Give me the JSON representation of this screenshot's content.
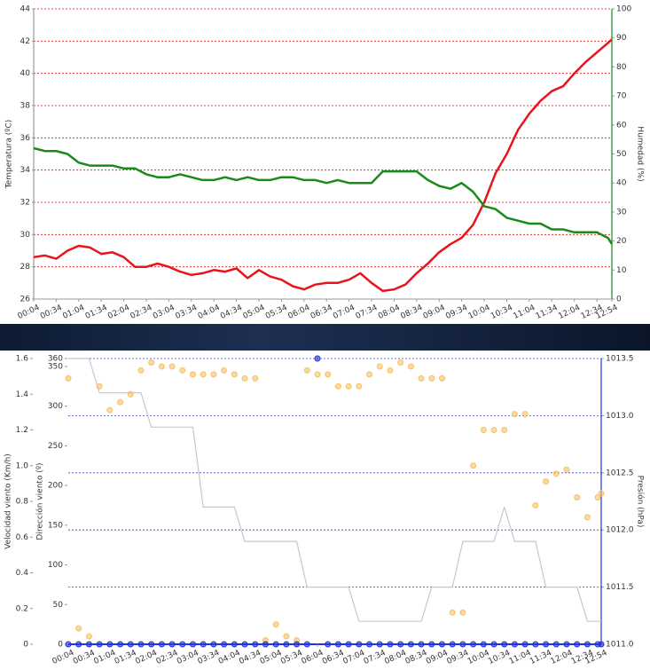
{
  "chart_data": [
    {
      "type": "line",
      "ylabel": "Temperatura (ºC)",
      "y2label": "Humedad (%)",
      "x": [
        4,
        19,
        34,
        49,
        64,
        79,
        94,
        109,
        124,
        139,
        154,
        169,
        184,
        199,
        214,
        229,
        244,
        259,
        274,
        289,
        304,
        319,
        334,
        349,
        364,
        379,
        394,
        409,
        424,
        439,
        454,
        469,
        484,
        499,
        514,
        529,
        544,
        559,
        574,
        589,
        604,
        619,
        634,
        649,
        664,
        679,
        694,
        709,
        724,
        739,
        754,
        769,
        774
      ],
      "xlim": [
        4,
        774
      ],
      "xticks": [
        {
          "value": 4,
          "label": "00:04"
        },
        {
          "value": 34,
          "label": "00:34"
        },
        {
          "value": 64,
          "label": "01:04"
        },
        {
          "value": 94,
          "label": "01:34"
        },
        {
          "value": 124,
          "label": "02:04"
        },
        {
          "value": 154,
          "label": "02:34"
        },
        {
          "value": 184,
          "label": "03:04"
        },
        {
          "value": 214,
          "label": "03:34"
        },
        {
          "value": 244,
          "label": "04:04"
        },
        {
          "value": 274,
          "label": "04:34"
        },
        {
          "value": 304,
          "label": "05:04"
        },
        {
          "value": 334,
          "label": "05:34"
        },
        {
          "value": 364,
          "label": "06:04"
        },
        {
          "value": 394,
          "label": "06:34"
        },
        {
          "value": 424,
          "label": "07:04"
        },
        {
          "value": 454,
          "label": "07:34"
        },
        {
          "value": 484,
          "label": "08:04"
        },
        {
          "value": 514,
          "label": "08:34"
        },
        {
          "value": 544,
          "label": "09:04"
        },
        {
          "value": 574,
          "label": "09:34"
        },
        {
          "value": 604,
          "label": "10:04"
        },
        {
          "value": 634,
          "label": "10:34"
        },
        {
          "value": 664,
          "label": "11:04"
        },
        {
          "value": 694,
          "label": "11:34"
        },
        {
          "value": 724,
          "label": "12:04"
        },
        {
          "value": 754,
          "label": "12:34"
        },
        {
          "value": 774,
          "label": "12:54"
        }
      ],
      "ylim": [
        26,
        44
      ],
      "yticks": [
        26,
        28,
        30,
        32,
        34,
        36,
        38,
        40,
        42,
        44
      ],
      "y2lim": [
        0,
        100
      ],
      "y2ticks": [
        0,
        10,
        20,
        30,
        40,
        50,
        60,
        70,
        80,
        90,
        100
      ],
      "grid": "y",
      "grid_color": "#e01010",
      "series": [
        {
          "name": "Temperatura",
          "color": "#e8141b",
          "values": [
            28.6,
            28.7,
            28.5,
            29.0,
            29.3,
            29.2,
            28.8,
            28.9,
            28.6,
            28.0,
            28.0,
            28.2,
            28.0,
            27.7,
            27.5,
            27.6,
            27.8,
            27.7,
            27.9,
            27.3,
            27.8,
            27.4,
            27.2,
            26.8,
            26.6,
            26.9,
            27.0,
            27.0,
            27.2,
            27.6,
            27.0,
            26.5,
            26.6,
            26.9,
            27.6,
            28.2,
            28.9,
            29.4,
            29.8,
            30.6,
            32.0,
            33.8,
            35.0,
            36.5,
            37.5,
            38.3,
            38.9,
            39.2,
            40.0,
            40.7,
            41.3,
            41.9,
            42.1
          ]
        },
        {
          "name": "Humedad",
          "color": "#1a8a1a",
          "axis": "y2",
          "values": [
            52,
            51,
            51,
            50,
            47,
            46,
            46,
            46,
            45,
            45,
            43,
            42,
            42,
            43,
            42,
            41,
            41,
            42,
            41,
            42,
            41,
            41,
            42,
            42,
            41,
            41,
            40,
            41,
            40,
            40,
            40,
            44,
            44,
            44,
            44,
            41,
            39,
            38,
            40,
            37,
            32,
            31,
            28,
            27,
            26,
            26,
            24,
            24,
            23,
            23,
            23,
            21,
            19
          ]
        }
      ]
    },
    {
      "type": "scatter",
      "ylabel": "Velocidad viento (Km/h)",
      "y3label": "Dirección viento (º)",
      "y2label": "Presión (hPa)",
      "x": [
        4,
        19,
        34,
        49,
        64,
        79,
        94,
        109,
        124,
        139,
        154,
        169,
        184,
        199,
        214,
        229,
        244,
        259,
        274,
        289,
        304,
        319,
        334,
        349,
        364,
        379,
        394,
        409,
        424,
        439,
        454,
        469,
        484,
        499,
        514,
        529,
        544,
        559,
        574,
        589,
        604,
        619,
        634,
        649,
        664,
        679,
        694,
        709,
        724,
        739,
        754,
        769,
        774
      ],
      "xlim": [
        4,
        774
      ],
      "xticks": [
        {
          "value": 4,
          "label": "00:04"
        },
        {
          "value": 34,
          "label": "00:34"
        },
        {
          "value": 64,
          "label": "01:04"
        },
        {
          "value": 94,
          "label": "01:34"
        },
        {
          "value": 124,
          "label": "02:04"
        },
        {
          "value": 154,
          "label": "02:34"
        },
        {
          "value": 184,
          "label": "03:04"
        },
        {
          "value": 214,
          "label": "03:34"
        },
        {
          "value": 244,
          "label": "04:04"
        },
        {
          "value": 274,
          "label": "04:34"
        },
        {
          "value": 304,
          "label": "05:04"
        },
        {
          "value": 334,
          "label": "05:34"
        },
        {
          "value": 364,
          "label": "06:04"
        },
        {
          "value": 394,
          "label": "06:34"
        },
        {
          "value": 424,
          "label": "07:04"
        },
        {
          "value": 454,
          "label": "07:34"
        },
        {
          "value": 484,
          "label": "08:04"
        },
        {
          "value": 514,
          "label": "08:34"
        },
        {
          "value": 544,
          "label": "09:04"
        },
        {
          "value": 574,
          "label": "09:34"
        },
        {
          "value": 604,
          "label": "10:04"
        },
        {
          "value": 634,
          "label": "10:34"
        },
        {
          "value": 664,
          "label": "11:04"
        },
        {
          "value": 694,
          "label": "11:34"
        },
        {
          "value": 724,
          "label": "12:04"
        },
        {
          "value": 754,
          "label": "12:34"
        },
        {
          "value": 774,
          "label": "12:54"
        }
      ],
      "ylim": [
        0,
        1.6
      ],
      "yticks": [
        0,
        0.2,
        0.4,
        0.6,
        0.8,
        {
          "value": 1,
          "label": "1.0"
        },
        1.2,
        1.4,
        1.6
      ],
      "y3lim": [
        0,
        360
      ],
      "y3ticks": [
        0,
        50,
        100,
        150,
        200,
        250,
        300,
        350,
        360
      ],
      "y2lim": [
        1011,
        1013.5
      ],
      "y2ticks": [
        {
          "value": 1011,
          "label": "1011.0"
        },
        1011.5,
        {
          "value": 1012,
          "label": "1012.0"
        },
        1012.5,
        {
          "value": 1013,
          "label": "1013.0"
        },
        1013.5
      ],
      "grid": "y2",
      "grid_color": "#3344cc",
      "series": [
        {
          "name": "Presión",
          "type": "line",
          "color": "#c8c8c8",
          "axis": "y2",
          "values": [
            1013.5,
            1013.5,
            1013.5,
            1013.2,
            1013.2,
            1013.2,
            1013.2,
            1013.2,
            1012.9,
            1012.9,
            1012.9,
            1012.9,
            1012.9,
            1012.2,
            1012.2,
            1012.2,
            1012.2,
            1011.9,
            1011.9,
            1011.9,
            1011.9,
            1011.9,
            1011.9,
            1011.5,
            1011.5,
            1011.5,
            1011.5,
            1011.5,
            1011.2,
            1011.2,
            1011.2,
            1011.2,
            1011.2,
            1011.2,
            1011.2,
            1011.5,
            1011.5,
            1011.5,
            1011.9,
            1011.9,
            1011.9,
            1011.9,
            1012.2,
            1011.9,
            1011.9,
            1011.9,
            1011.5,
            1011.5,
            1011.5,
            1011.5,
            1011.2,
            1011.2,
            1011.2
          ]
        },
        {
          "name": "Dirección viento",
          "color": "#f5c164",
          "axis": "y3",
          "values": [
            335,
            20,
            10,
            325,
            295,
            305,
            315,
            345,
            355,
            350,
            350,
            345,
            340,
            340,
            340,
            345,
            340,
            335,
            335,
            5,
            25,
            10,
            5,
            345,
            340,
            340,
            325,
            325,
            325,
            340,
            350,
            345,
            355,
            350,
            335,
            335,
            335,
            40,
            40,
            225,
            270,
            270,
            270,
            290,
            290,
            175,
            205,
            215,
            220,
            185,
            160,
            185,
            190
          ]
        },
        {
          "name": "Velocidad viento",
          "color": "#2233dd",
          "values": [
            0,
            0,
            0,
            0,
            0,
            0,
            0,
            0,
            0,
            0,
            0,
            0,
            0,
            0,
            0,
            0,
            0,
            0,
            0,
            0,
            0,
            0,
            0,
            0,
            1.6,
            0,
            0,
            0,
            0,
            0,
            0,
            0,
            0,
            0,
            0,
            0,
            0,
            0,
            0,
            0,
            0,
            0,
            0,
            0,
            0,
            0,
            0,
            0,
            0,
            0,
            0,
            0,
            0
          ]
        }
      ]
    }
  ]
}
